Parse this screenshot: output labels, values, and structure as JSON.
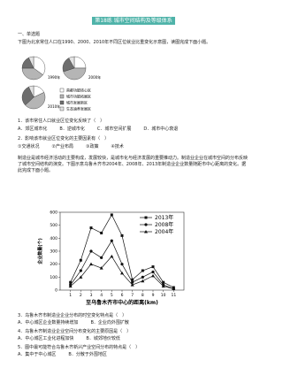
{
  "title": "第18练 城市空间结构及等级体系",
  "section": "一、单选题",
  "intro": "下图为北京常住人口在1990、2000、2010年不同区位就业比重变化示意图，读图完成下面小题。",
  "pie_figure": {
    "type": "pie",
    "legend": [
      "首都功能核心区",
      "城市功能拓展区",
      "城市发展新区",
      "生态涵养发展区"
    ],
    "colors": [
      "#ffffff",
      "#b5b5b5",
      "#6e6e6e",
      "#e3e3e3"
    ],
    "pies": [
      {
        "label": "1990年",
        "values": [
          35,
          40,
          18,
          7
        ]
      },
      {
        "label": "2000年",
        "values": [
          25,
          45,
          22,
          8
        ]
      },
      {
        "label": "2010年",
        "values": [
          18,
          45,
          30,
          7
        ]
      }
    ]
  },
  "questions_a": [
    {
      "stem": "1．该市常住人口就业区位变化反映了（　）",
      "options": [
        "A．郊区城市化",
        "B．逆城市化",
        "C．城市空间扩展",
        "D．城市中心衰退"
      ]
    },
    {
      "stem": "2．影响该市就业区位变化的主要因素有（　）",
      "options": [
        "①交通状况",
        "②产业布局",
        "③政策",
        "④技术"
      ]
    }
  ],
  "passage": "制造业是城市经济活动的主要构成，发展较快，是城市化与经济发展的重要推动力。制造业企业在城市空间的分布反映了城市空间结构的演变。下图示意乌鲁木齐市2004年、2008年、2013年制造业企业数量随距市中心距离的变化。据此完成下面小题。",
  "line_figure": {
    "type": "line",
    "y_label": "企业数量(个)",
    "x_label": "至乌鲁木齐市中心的距离(km)",
    "x": [
      1,
      2,
      3,
      4,
      5,
      6,
      7,
      8,
      9,
      10,
      11
    ],
    "xlim": [
      0,
      12
    ],
    "xticks": [
      1,
      2,
      3,
      4,
      5,
      6,
      7,
      8,
      9,
      10,
      11
    ],
    "ylim": [
      0,
      600
    ],
    "yticks": [
      0,
      100,
      200,
      300,
      400,
      500,
      600
    ],
    "series": [
      {
        "name": "2013年",
        "color": "#111111",
        "values": [
          60,
          230,
          480,
          440,
          580,
          420,
          80,
          150,
          180,
          60,
          20
        ]
      },
      {
        "name": "2008年",
        "color": "#111111",
        "values": [
          40,
          150,
          300,
          250,
          380,
          200,
          60,
          100,
          140,
          40,
          10
        ]
      },
      {
        "name": "2004年",
        "color": "#111111",
        "values": [
          30,
          100,
          200,
          170,
          260,
          130,
          40,
          70,
          110,
          30,
          10
        ]
      }
    ]
  },
  "questions_b": [
    {
      "stem": "3．乌鲁木齐市制造业企业分布的时空变化特点是（　）",
      "options": [
        "A．中心城区企业数量持续增加",
        "B．企业向外围扩散"
      ]
    },
    {
      "stem": "4．乌鲁木齐制造业企业空间分布变化的主要原因是（　）",
      "options": [
        "A．中心城区工业化进程加快",
        "B．城郊地价较低"
      ]
    },
    {
      "stem": "5．图中最可能符合乌鲁木齐新兴产业空间分布的特点是（　）",
      "options": [
        "A．集中于中心城区",
        "B．分散于外围地区"
      ]
    }
  ]
}
